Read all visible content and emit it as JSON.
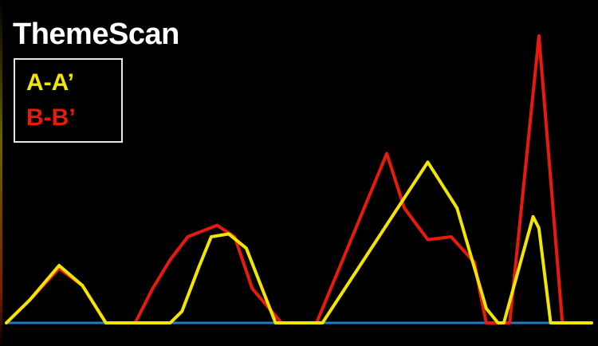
{
  "chart_data": {
    "type": "line",
    "title": "ThemeScan",
    "xlabel": "",
    "ylabel": "",
    "xlim": [
      0,
      100
    ],
    "ylim": [
      0,
      100
    ],
    "grid": false,
    "legend_placement": "top-left",
    "baseline_color": "#1f7bc4",
    "series": [
      {
        "name": "A-A’",
        "color": "#f2e600",
        "x": [
          0,
          4,
          9,
          13,
          17,
          28,
          30,
          33,
          35,
          38,
          41,
          46,
          48,
          54,
          72,
          77,
          82,
          84,
          85,
          90,
          91,
          93,
          94,
          100
        ],
        "y": [
          0,
          8,
          20,
          13,
          0,
          0,
          4,
          20,
          30,
          31,
          26,
          0,
          0,
          0,
          56,
          40,
          5,
          0,
          0,
          37,
          33,
          0,
          0,
          0
        ]
      },
      {
        "name": "B-B’",
        "color": "#e81a0e",
        "x": [
          0,
          4,
          9,
          13,
          17,
          22,
          25,
          28,
          31,
          36,
          39,
          42,
          47,
          53,
          65,
          68,
          72,
          76,
          80,
          81,
          82,
          86,
          91,
          95,
          100
        ],
        "y": [
          0,
          8,
          19,
          13,
          0,
          0,
          12,
          22,
          30,
          34,
          30,
          12,
          0,
          0,
          59,
          40,
          29,
          30,
          21,
          10,
          0,
          0,
          100,
          0,
          0
        ]
      }
    ]
  }
}
